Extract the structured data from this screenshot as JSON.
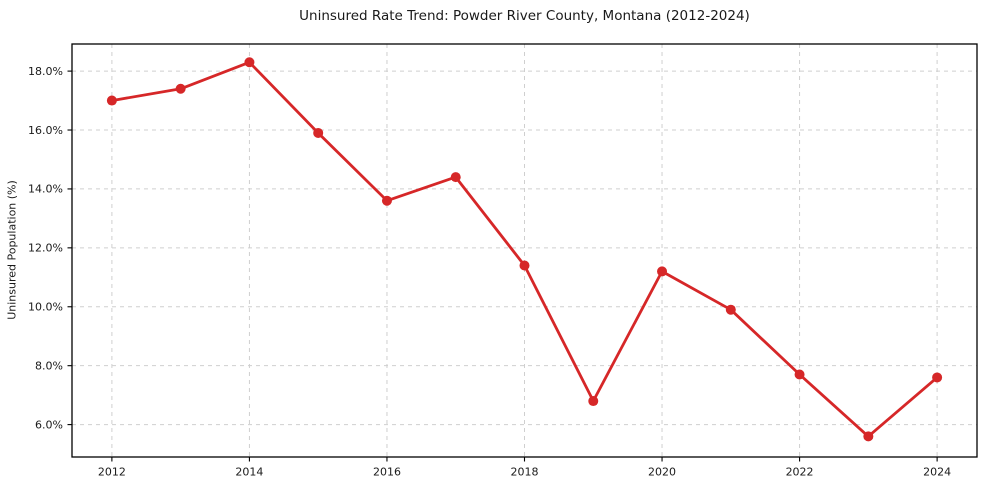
{
  "page": {
    "background": "#ffffff"
  },
  "chart_data": {
    "type": "line",
    "title": "Uninsured Rate Trend: Powder River County, Montana (2012-2024)",
    "xlabel": "",
    "ylabel": "Uninsured Population (%)",
    "x": [
      2012,
      2013,
      2014,
      2015,
      2016,
      2017,
      2018,
      2019,
      2020,
      2021,
      2022,
      2023,
      2024
    ],
    "values": [
      17.0,
      17.4,
      18.3,
      15.9,
      13.6,
      14.4,
      11.4,
      6.8,
      11.2,
      9.9,
      7.7,
      5.6,
      7.6
    ],
    "xlim": [
      2011.42,
      2024.58
    ],
    "ylim": [
      4.9,
      18.92
    ],
    "xticks": {
      "values": [
        2012,
        2014,
        2016,
        2018,
        2020,
        2022,
        2024
      ],
      "labels": [
        "2012",
        "2014",
        "2016",
        "2018",
        "2020",
        "2022",
        "2024"
      ]
    },
    "yticks": {
      "values": [
        6,
        8,
        10,
        12,
        14,
        16,
        18
      ],
      "labels": [
        "6.0%",
        "8.0%",
        "10.0%",
        "12.0%",
        "14.0%",
        "16.0%",
        "18.0%"
      ]
    },
    "grid": "dashed",
    "legend": "none",
    "marker": "circle",
    "line_color": "#d62728",
    "marker_color": "#d62728",
    "grid_color": "#cfcfcf",
    "frame_color": "#000000",
    "tick_color": "#000000",
    "text_color": "#1a1a1a"
  }
}
